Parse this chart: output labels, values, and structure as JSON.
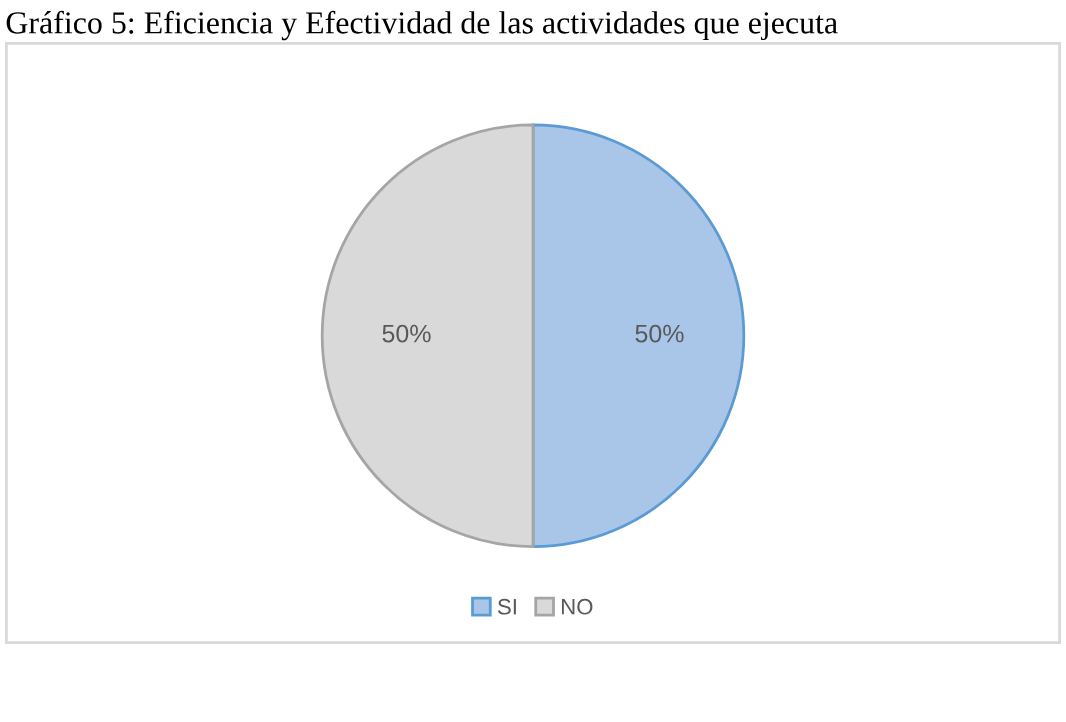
{
  "chart_data": {
    "type": "pie",
    "title": "Gráfico 5: Eficiencia y Efectividad de las actividades que ejecuta",
    "categories": [
      "SI",
      "NO"
    ],
    "values": [
      50,
      50
    ],
    "colors": [
      "#a9c6e8",
      "#d9d9d9"
    ],
    "value_labels": [
      "50%",
      "50%"
    ],
    "legend": "bottom"
  }
}
